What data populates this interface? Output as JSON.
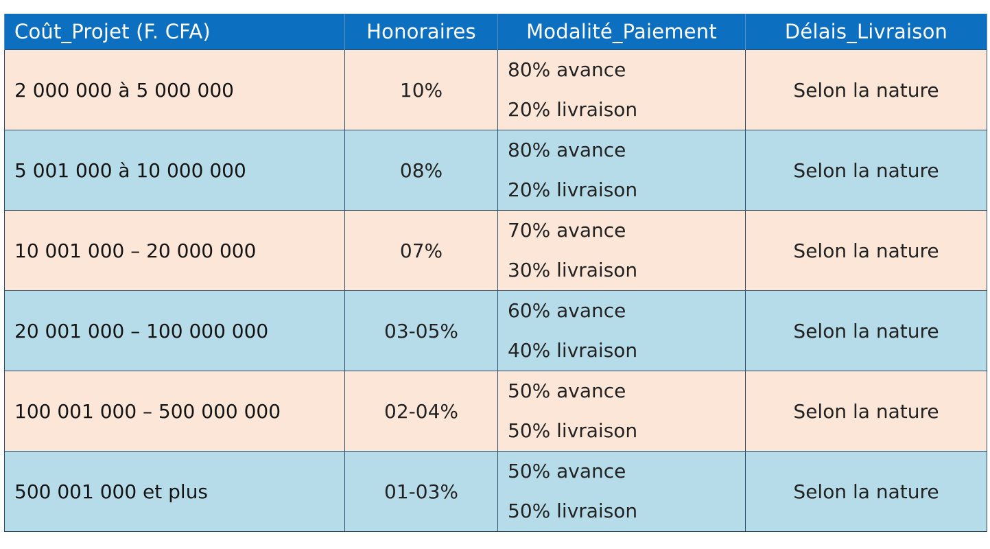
{
  "table": {
    "headers": [
      "Coût_Projet (F. CFA)",
      "Honoraires",
      "Modalité_Paiement",
      "Délais_Livraison"
    ],
    "rows": [
      {
        "cost": "2 000 000 à 5 000 000",
        "fee": "10%",
        "payment": [
          "80% avance",
          "20% livraison"
        ],
        "delay": "Selon la nature"
      },
      {
        "cost": "5 001 000 à 10 000 000",
        "fee": "08%",
        "payment": [
          "80% avance",
          "20% livraison"
        ],
        "delay": "Selon la nature"
      },
      {
        "cost": "10 001 000 – 20 000 000",
        "fee": "07%",
        "payment": [
          "70% avance",
          "30% livraison"
        ],
        "delay": "Selon la nature"
      },
      {
        "cost": "20 001 000 – 100 000 000",
        "fee": "03-05%",
        "payment": [
          "60% avance",
          "40% livraison"
        ],
        "delay": "Selon la nature"
      },
      {
        "cost": "100 001 000 – 500 000 000",
        "fee": "02-04%",
        "payment": [
          "50% avance",
          "50% livraison"
        ],
        "delay": "Selon la nature"
      },
      {
        "cost": "500 001 000 et plus",
        "fee": "01-03%",
        "payment": [
          "50% avance",
          "50% livraison"
        ],
        "delay": "Selon la nature"
      }
    ]
  },
  "colors": {
    "header_bg": "#0c6fc0",
    "row_peach": "#fce6d8",
    "row_blue": "#b5dce8"
  }
}
